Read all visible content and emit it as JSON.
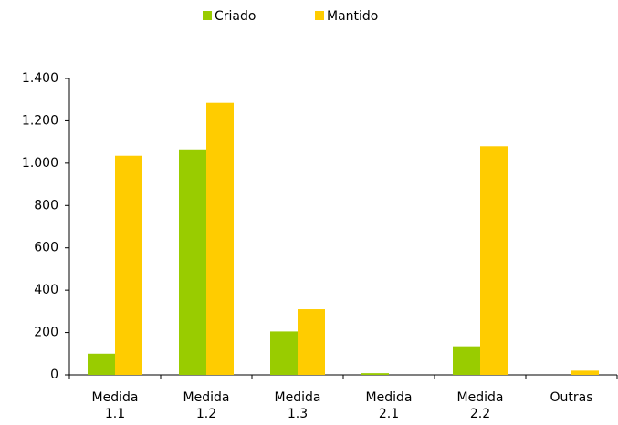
{
  "chart_data": {
    "type": "bar",
    "categories": [
      "Medida 1.1",
      "Medida 1.2",
      "Medida 1.3",
      "Medida 2.1",
      "Medida 2.2",
      "Outras"
    ],
    "series": [
      {
        "name": "Criado",
        "color": "#99cc00",
        "values": [
          100,
          1065,
          205,
          8,
          135,
          0
        ]
      },
      {
        "name": "Mantido",
        "color": "#ffcc00",
        "values": [
          1035,
          1285,
          310,
          0,
          1080,
          20
        ]
      }
    ],
    "ylim": [
      0,
      1400
    ],
    "yticks": [
      0,
      200,
      400,
      600,
      800,
      {
        "value": 1000,
        "label": "1.000"
      },
      {
        "value": 1200,
        "label": "1.200"
      },
      {
        "value": 1400,
        "label": "1.400"
      }
    ],
    "grid": false,
    "legend": "top"
  }
}
